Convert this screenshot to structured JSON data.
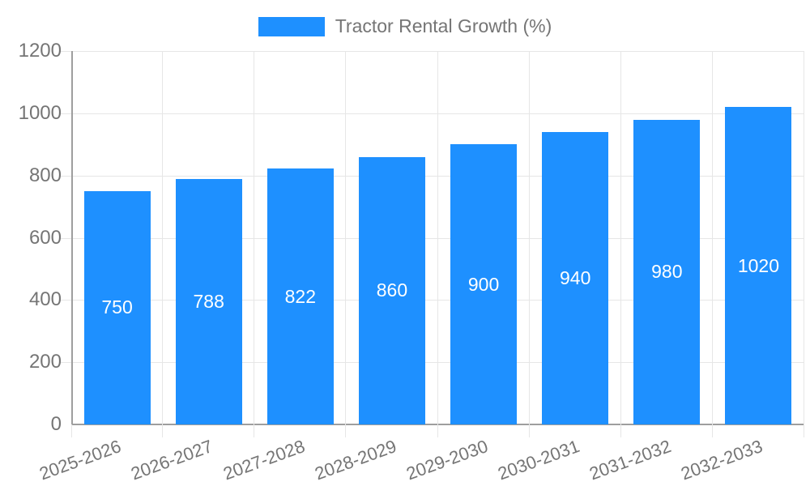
{
  "chart_data": {
    "type": "bar",
    "title": "",
    "legend_label": "Tractor Rental Growth (%)",
    "legend_position": "top",
    "categories": [
      "2025-2026",
      "2026-2027",
      "2027-2028",
      "2028-2029",
      "2029-2030",
      "2030-2031",
      "2031-2032",
      "2032-2033"
    ],
    "series": [
      {
        "name": "Tractor Rental Growth (%)",
        "values": [
          750,
          788,
          822,
          860,
          900,
          940,
          980,
          1020
        ]
      }
    ],
    "values": [
      750,
      788,
      822,
      860,
      900,
      940,
      980,
      1020
    ],
    "value_labels": [
      "750",
      "788",
      "822",
      "860",
      "900",
      "940",
      "980",
      "1020"
    ],
    "xlabel": "",
    "ylabel": "",
    "ylim": [
      0,
      1200
    ],
    "yticks": [
      0,
      200,
      400,
      600,
      800,
      1000,
      1200
    ],
    "grid": true,
    "x_label_rotation_deg": -20,
    "colors": {
      "bar": "#1E90FF",
      "bar_label": "#FFFFFF",
      "axis_text": "#757575",
      "axis_line": "#9E9E9E",
      "gridline": "#E6E6E6"
    }
  }
}
